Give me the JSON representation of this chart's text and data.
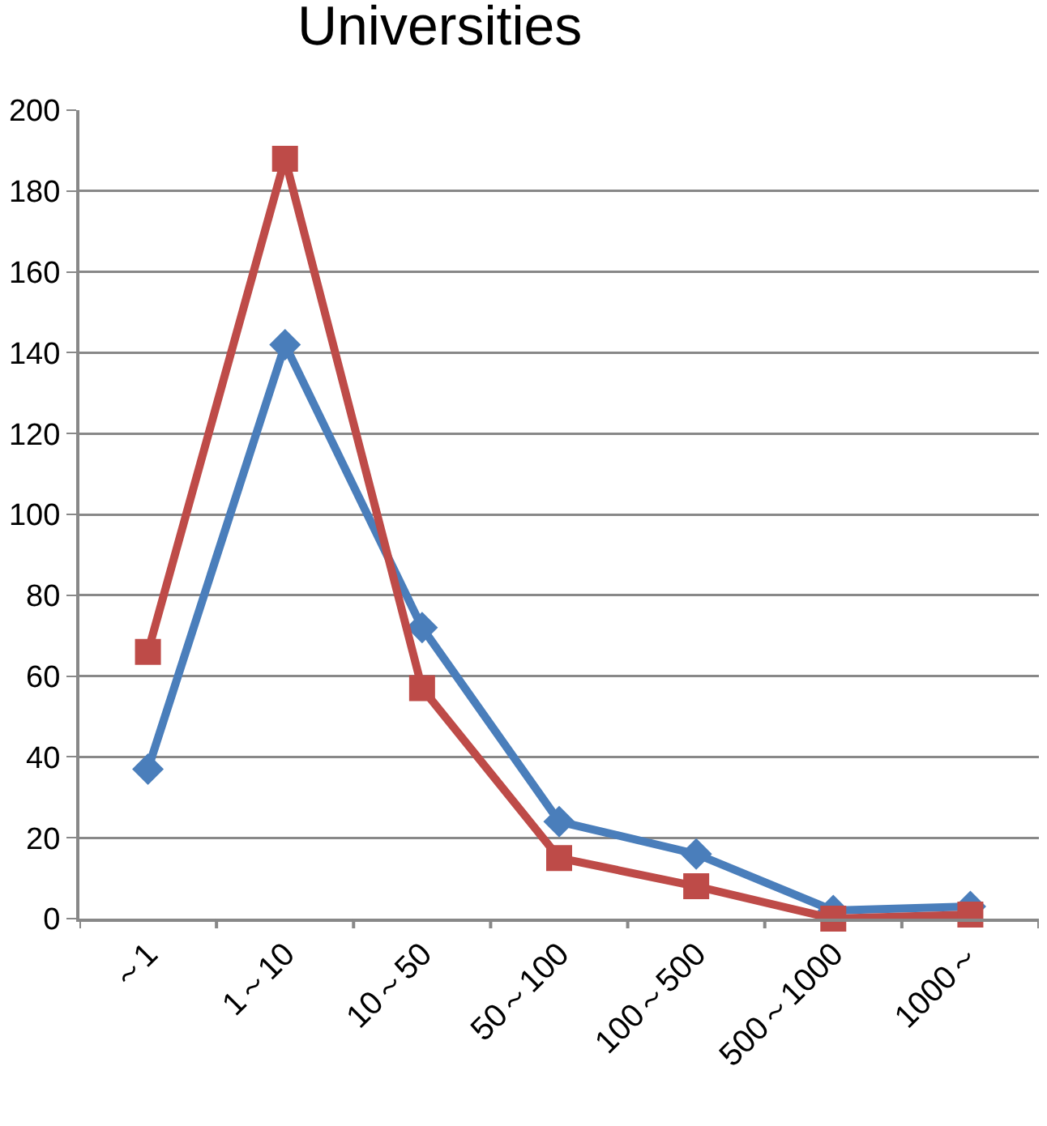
{
  "chart_data": {
    "type": "line",
    "title": "Universities",
    "categories": [
      "～1",
      "1～10",
      "10～50",
      "50～100",
      "100～500",
      "500～1000",
      "1000～"
    ],
    "series": [
      {
        "color": "#4a7ebb",
        "marker": "diamond",
        "values": [
          37,
          142,
          72,
          24,
          16,
          2,
          3
        ]
      },
      {
        "color": "#be4b48",
        "marker": "square",
        "values": [
          66,
          188,
          57,
          15,
          8,
          0,
          1
        ]
      }
    ],
    "ylim": [
      0,
      200
    ],
    "yticks": [
      0,
      20,
      40,
      60,
      80,
      100,
      120,
      140,
      160,
      180,
      200
    ],
    "grid": "y",
    "line_style": "solid"
  }
}
